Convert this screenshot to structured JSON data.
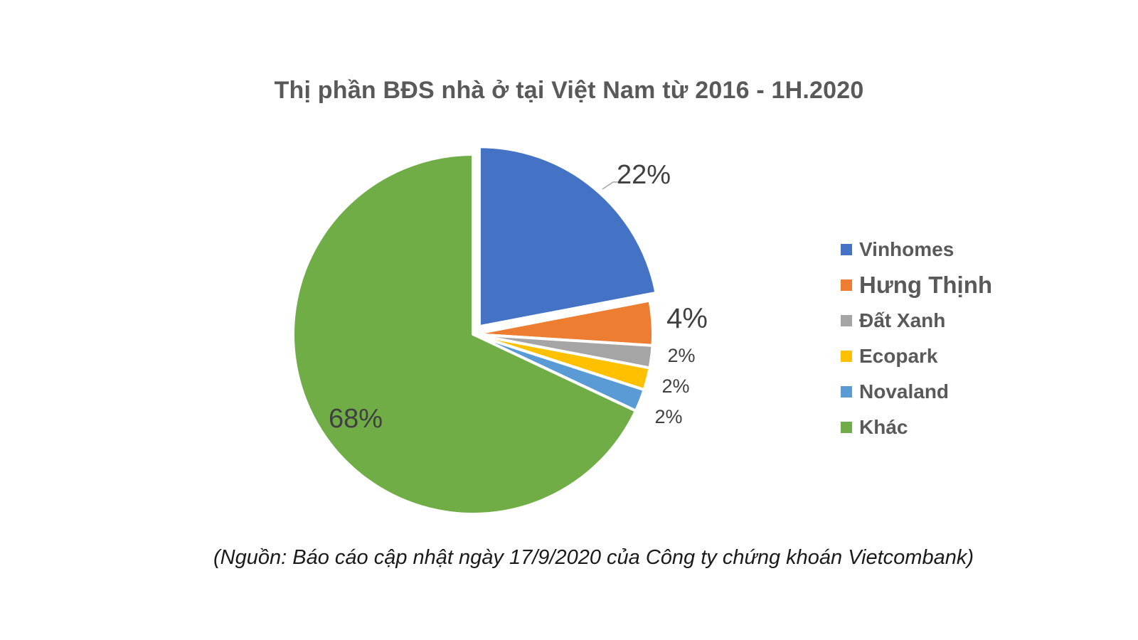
{
  "chart_data": {
    "type": "pie",
    "title": "Thị phần BĐS nhà ở tại Việt Nam từ 2016 - 1H.2020",
    "slices": [
      {
        "name": "Vinhomes",
        "value": 22,
        "label": "22%",
        "color": "#4472C4",
        "exploded": true
      },
      {
        "name": "Hưng Thịnh",
        "value": 4,
        "label": "4%",
        "color": "#ED7D31"
      },
      {
        "name": "Đất Xanh",
        "value": 2,
        "label": "2%",
        "color": "#A5A5A5"
      },
      {
        "name": "Ecopark",
        "value": 2,
        "label": "2%",
        "color": "#FFC000"
      },
      {
        "name": "Novaland",
        "value": 2,
        "label": "2%",
        "color": "#5B9BD5"
      },
      {
        "name": "Khác",
        "value": 68,
        "label": "68%",
        "color": "#70AD47"
      }
    ],
    "legend_position": "right",
    "source_note": "(Nguồn: Báo cáo cập nhật ngày 17/9/2020 của Công ty chứng khoán Vietcombank)"
  }
}
